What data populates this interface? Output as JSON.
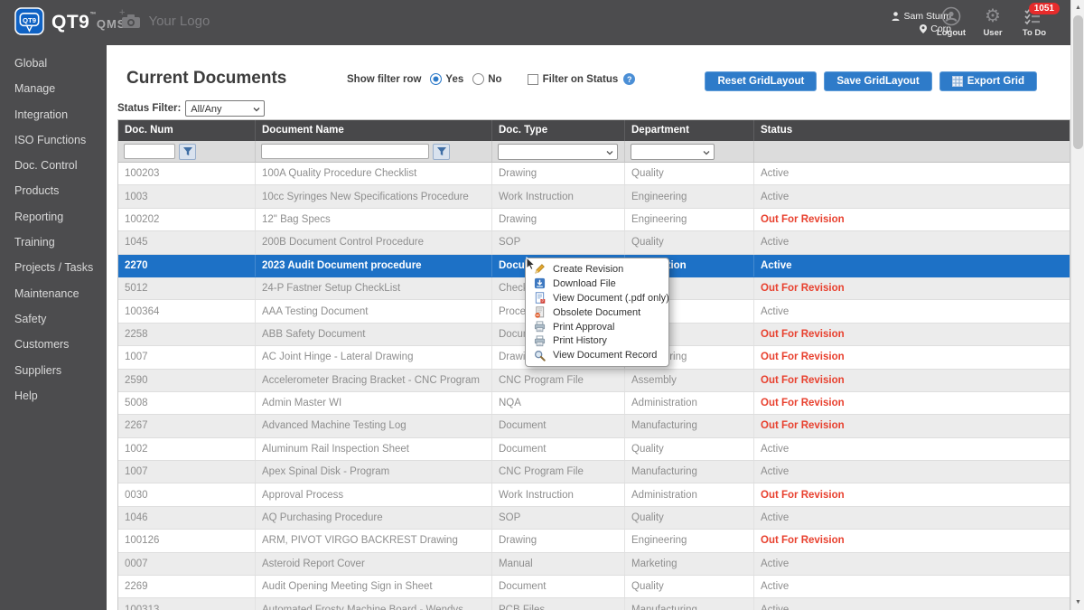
{
  "colors": {
    "chrome": "#4c4c4e",
    "grid_header": "#48484a",
    "accent_blue": "#2e7bc9",
    "selected_row": "#1d71c6",
    "status_red": "#e8402e",
    "badge_red": "#e62b2b"
  },
  "header": {
    "brand": {
      "name": "QT9",
      "tm": "™",
      "suffix": "QMS"
    },
    "your_logo": "Your Logo",
    "user": {
      "name": "Sam Sturm",
      "company": "Corp"
    },
    "logout_label": "Logout",
    "user_label": "User",
    "todo_label": "To Do",
    "todo_badge": "1051"
  },
  "sidebar": {
    "items": [
      "Global",
      "Manage",
      "Integration",
      "ISO Functions",
      "Doc. Control",
      "Products",
      "Reporting",
      "Training",
      "Projects / Tasks",
      "Maintenance",
      "Safety",
      "Customers",
      "Suppliers",
      "Help"
    ]
  },
  "page": {
    "title": "Current Documents",
    "show_filter_row_label": "Show filter row",
    "radio_yes": "Yes",
    "radio_no": "No",
    "filter_on_status_label": "Filter on Status",
    "buttons": {
      "reset": "Reset GridLayout",
      "save": "Save GridLayout",
      "export": "Export Grid"
    },
    "status_filter_label": "Status Filter:",
    "status_filter_value": "All/Any"
  },
  "table": {
    "columns": [
      "Doc. Num",
      "Document Name",
      "Doc. Type",
      "Department",
      "Status"
    ],
    "rows": [
      {
        "num": "100203",
        "name": "100A Quality Procedure Checklist",
        "type": "Drawing",
        "dept": "Quality",
        "status": "Active"
      },
      {
        "num": "1003",
        "name": "10cc Syringes New Specifications Procedure",
        "type": "Work Instruction",
        "dept": "Engineering",
        "status": "Active"
      },
      {
        "num": "100202",
        "name": "12\" Bag Specs",
        "type": "Drawing",
        "dept": "Engineering",
        "status": "Out For Revision"
      },
      {
        "num": "1045",
        "name": "200B Document Control Procedure",
        "type": "SOP",
        "dept": "Quality",
        "status": "Active"
      },
      {
        "num": "2270",
        "name": "2023 Audit Document procedure",
        "type": "Document",
        "dept": "Production",
        "status": "Active",
        "selected": true
      },
      {
        "num": "5012",
        "name": "24-P Fastner Setup CheckList",
        "type": "Checklist",
        "dept": "",
        "status": "Out For Revision"
      },
      {
        "num": "100364",
        "name": "AAA Testing Document",
        "type": "Procedure",
        "dept": "",
        "status": "Active"
      },
      {
        "num": "2258",
        "name": "ABB Safety Document",
        "type": "Document",
        "dept": "",
        "status": "Out For Revision"
      },
      {
        "num": "1007",
        "name": "AC Joint Hinge - Lateral Drawing",
        "type": "Drawing",
        "dept": "Engineering",
        "status": "Out For Revision"
      },
      {
        "num": "2590",
        "name": "Accelerometer Bracing Bracket - CNC Program",
        "type": "CNC Program File",
        "dept": "Assembly",
        "status": "Out For Revision"
      },
      {
        "num": "5008",
        "name": "Admin Master WI",
        "type": "NQA",
        "dept": "Administration",
        "status": "Out For Revision"
      },
      {
        "num": "2267",
        "name": "Advanced Machine Testing Log",
        "type": "Document",
        "dept": "Manufacturing",
        "status": "Out For Revision"
      },
      {
        "num": "1002",
        "name": "Aluminum Rail Inspection Sheet",
        "type": "Document",
        "dept": "Quality",
        "status": "Active"
      },
      {
        "num": "1007",
        "name": "Apex Spinal Disk - Program",
        "type": "CNC Program File",
        "dept": "Manufacturing",
        "status": "Active"
      },
      {
        "num": "0030",
        "name": "Approval Process",
        "type": "Work Instruction",
        "dept": "Administration",
        "status": "Out For Revision"
      },
      {
        "num": "1046",
        "name": "AQ Purchasing Procedure",
        "type": "SOP",
        "dept": "Quality",
        "status": "Active"
      },
      {
        "num": "100126",
        "name": "ARM, PIVOT VIRGO BACKREST Drawing",
        "type": "Drawing",
        "dept": "Engineering",
        "status": "Out For Revision"
      },
      {
        "num": "0007",
        "name": "Asteroid Report Cover",
        "type": "Manual",
        "dept": "Marketing",
        "status": "Active"
      },
      {
        "num": "2269",
        "name": "Audit Opening Meeting Sign in Sheet",
        "type": "Document",
        "dept": "Quality",
        "status": "Active"
      },
      {
        "num": "100313",
        "name": "Automated Frosty Machine Board - Wendys",
        "type": "PCB Files",
        "dept": "Manufacturing",
        "status": "Active"
      }
    ]
  },
  "context_menu": {
    "items": [
      {
        "label": "Create Revision",
        "icon": "create-revision-icon"
      },
      {
        "label": "Download File",
        "icon": "download-file-icon"
      },
      {
        "label": "View Document (.pdf only)",
        "icon": "view-document-icon"
      },
      {
        "label": "Obsolete Document",
        "icon": "obsolete-document-icon"
      },
      {
        "label": "Print Approval",
        "icon": "print-approval-icon"
      },
      {
        "label": "Print History",
        "icon": "print-history-icon"
      },
      {
        "label": "View Document Record",
        "icon": "view-record-icon"
      }
    ]
  }
}
